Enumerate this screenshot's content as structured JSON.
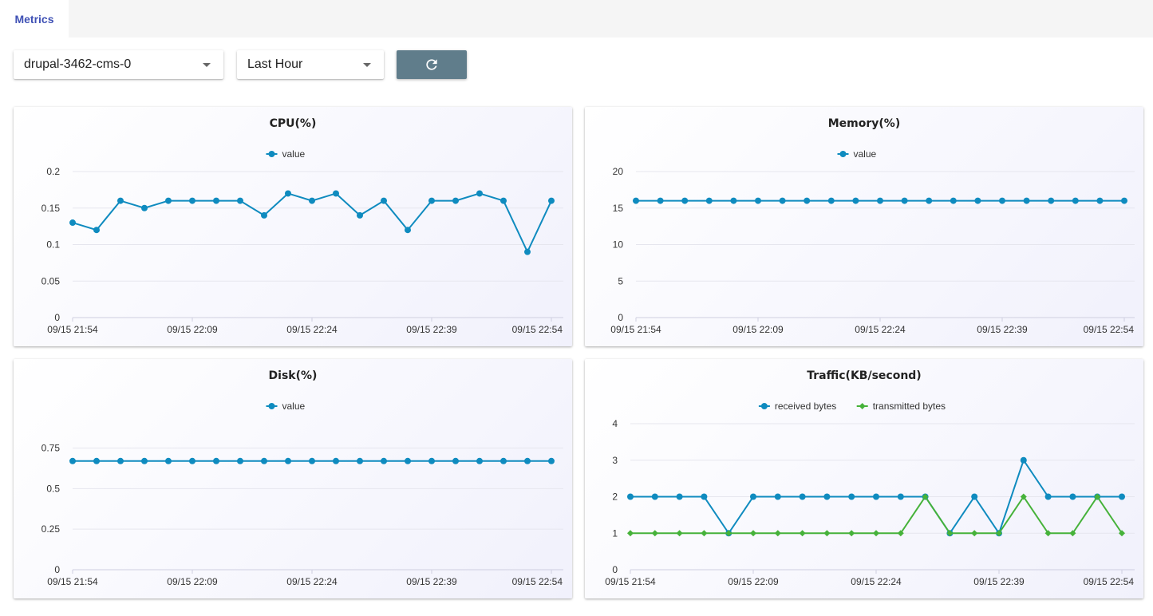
{
  "tabs": [
    {
      "label": "Metrics"
    }
  ],
  "controls": {
    "pod_select": {
      "value": "drupal-3462-cms-0"
    },
    "range_select": {
      "value": "Last Hour"
    },
    "refresh_icon": "refresh-icon"
  },
  "colors": {
    "accent": "#3f51b5",
    "series_blue": "#0f8bbf",
    "series_green": "#46b23a",
    "refresh_button": "#607d8b"
  },
  "chart_data": [
    {
      "type": "line",
      "title": "CPU(%)",
      "xticks": [
        "09/15 21:54",
        "09/15 22:09",
        "09/15 22:24",
        "09/15 22:39",
        "09/15 22:54"
      ],
      "yticks": [
        "0",
        "0.05",
        "0.1",
        "0.15",
        "0.2"
      ],
      "ylim": [
        0,
        0.2
      ],
      "grid": true,
      "legend": "top-center",
      "series": [
        {
          "name": "value",
          "color": "#0f8bbf",
          "marker": "circle",
          "values": [
            0.13,
            0.12,
            0.16,
            0.15,
            0.16,
            0.16,
            0.16,
            0.16,
            0.14,
            0.17,
            0.16,
            0.17,
            0.14,
            0.16,
            0.12,
            0.16,
            0.16,
            0.17,
            0.16,
            0.09,
            0.16
          ]
        }
      ]
    },
    {
      "type": "line",
      "title": "Memory(%)",
      "xticks": [
        "09/15 21:54",
        "09/15 22:09",
        "09/15 22:24",
        "09/15 22:39",
        "09/15 22:54"
      ],
      "yticks": [
        "0",
        "5",
        "10",
        "15",
        "20"
      ],
      "ylim": [
        0,
        20
      ],
      "grid": true,
      "legend": "top-center",
      "series": [
        {
          "name": "value",
          "color": "#0f8bbf",
          "marker": "circle",
          "values": [
            16,
            16,
            16,
            16,
            16,
            16,
            16,
            16,
            16,
            16,
            16,
            16,
            16,
            16,
            16,
            16,
            16,
            16,
            16,
            16,
            16
          ]
        }
      ]
    },
    {
      "type": "line",
      "title": "Disk(%)",
      "xticks": [
        "09/15 21:54",
        "09/15 22:09",
        "09/15 22:24",
        "09/15 22:39",
        "09/15 22:54"
      ],
      "yticks": [
        "0",
        "0.25",
        "0.5",
        "0.75"
      ],
      "ylim": [
        0,
        0.9
      ],
      "grid": true,
      "legend": "top-center",
      "series": [
        {
          "name": "value",
          "color": "#0f8bbf",
          "marker": "circle",
          "values": [
            0.67,
            0.67,
            0.67,
            0.67,
            0.67,
            0.67,
            0.67,
            0.67,
            0.67,
            0.67,
            0.67,
            0.67,
            0.67,
            0.67,
            0.67,
            0.67,
            0.67,
            0.67,
            0.67,
            0.67,
            0.67
          ]
        }
      ]
    },
    {
      "type": "line",
      "title": "Traffic(KB/second)",
      "xticks": [
        "09/15 21:54",
        "09/15 22:09",
        "09/15 22:24",
        "09/15 22:39",
        "09/15 22:54"
      ],
      "yticks": [
        "0",
        "1",
        "2",
        "3",
        "4"
      ],
      "ylim": [
        0,
        4
      ],
      "grid": true,
      "legend": "top-center",
      "series": [
        {
          "name": "received bytes",
          "color": "#0f8bbf",
          "marker": "circle",
          "values": [
            2,
            2,
            2,
            2,
            1,
            2,
            2,
            2,
            2,
            2,
            2,
            2,
            2,
            1,
            2,
            1,
            3,
            2,
            2,
            2,
            2
          ]
        },
        {
          "name": "transmitted bytes",
          "color": "#46b23a",
          "marker": "diamond",
          "values": [
            1,
            1,
            1,
            1,
            1,
            1,
            1,
            1,
            1,
            1,
            1,
            1,
            2,
            1,
            1,
            1,
            2,
            1,
            1,
            2,
            1
          ]
        }
      ]
    }
  ]
}
